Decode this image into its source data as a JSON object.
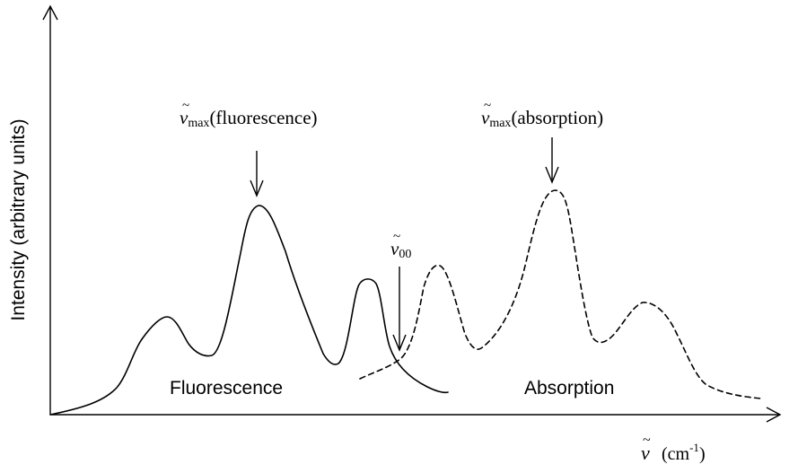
{
  "y_axis": {
    "label": "Intensity (arbitrary units)"
  },
  "x_axis": {
    "symbol": "ν",
    "tilde": "~",
    "unit_open": "(cm",
    "unit_exp": "-1",
    "unit_close": ")"
  },
  "annotations": {
    "fluorescence_max": {
      "symbol": "ν",
      "tilde": "~",
      "subscript": "max",
      "label": "(fluorescence)"
    },
    "absorption_max": {
      "symbol": "ν",
      "tilde": "~",
      "subscript": "max",
      "label": "(absorption)"
    },
    "zero_zero": {
      "symbol": "ν",
      "tilde": "~",
      "subscript": "00"
    }
  },
  "regions": {
    "fluorescence_label": "Fluorescence",
    "absorption_label": "Absorption"
  },
  "curves": {
    "fluorescence_style": "solid",
    "absorption_style": "dashed",
    "color": "#000000"
  }
}
